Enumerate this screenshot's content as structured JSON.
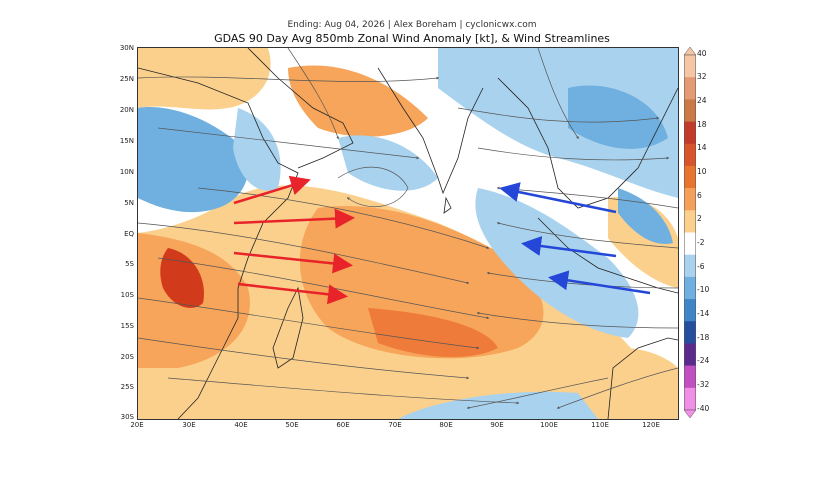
{
  "header": {
    "subtitle": "Ending: Aug 04, 2026 | Alex Boreham | cyclonicwx.com",
    "title": "GDAS 90 Day Avg 850mb Zonal Wind Anomaly [kt], & Wind Streamlines"
  },
  "map": {
    "lat_labels": [
      "30N",
      "25N",
      "20N",
      "15N",
      "10N",
      "5N",
      "EQ",
      "5S",
      "10S",
      "15S",
      "20S",
      "25S",
      "30S"
    ],
    "lon_labels": [
      "20E",
      "30E",
      "40E",
      "50E",
      "60E",
      "70E",
      "80E",
      "90E",
      "100E",
      "110E",
      "120E"
    ],
    "colors": {
      "positive_light": "#fbd08c",
      "positive": "#f6a55a",
      "positive_strong": "#ef7b3a",
      "positive_dark": "#d23a1c",
      "negative_light": "#a9d2ee",
      "negative": "#6fb0e0",
      "negative_strong": "#3f86c8",
      "land_outline": "#222222",
      "streamline": "#555555",
      "arrow_westerly": "#e8232a",
      "arrow_easterly": "#2447d8"
    }
  },
  "colorbar": {
    "labels": [
      "40",
      "32",
      "24",
      "18",
      "14",
      "10",
      "6",
      "2",
      "-2",
      "-6",
      "-10",
      "-14",
      "-18",
      "-24",
      "-32",
      "-40"
    ],
    "colors": [
      "#f5c6a6",
      "#e49a74",
      "#c97a46",
      "#c23a2a",
      "#d8552c",
      "#e8752e",
      "#f4a05a",
      "#fbd08c",
      "#ffffff",
      "#a9d2ee",
      "#6fb0e0",
      "#3f86c8",
      "#244f9e",
      "#5a2a8c",
      "#c24fc2",
      "#f08fe6"
    ]
  }
}
